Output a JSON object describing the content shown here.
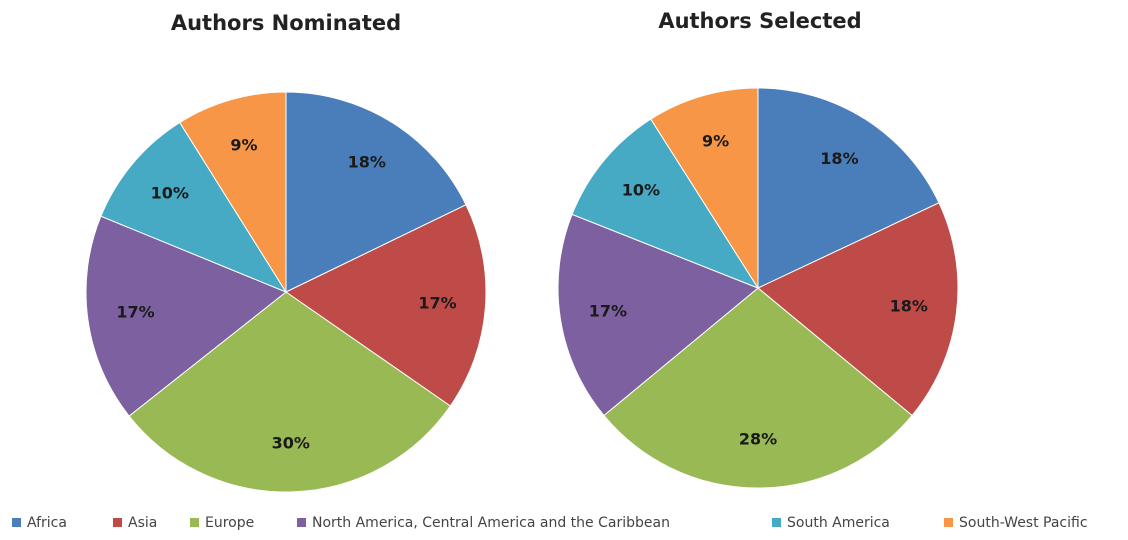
{
  "chart_data": [
    {
      "type": "pie",
      "title": "Authors Nominated",
      "categories": [
        "Africa",
        "Asia",
        "Europe",
        "North America, Central America and the Caribbean",
        "South America",
        "South-West Pacific"
      ],
      "values": [
        18,
        17,
        30,
        17,
        10,
        9
      ],
      "value_labels": [
        "18%",
        "17%",
        "30%",
        "17%",
        "10%",
        "9%"
      ],
      "colors": [
        "#4a7ebb",
        "#be4b48",
        "#98b954",
        "#7d60a0",
        "#46aac5",
        "#f79646"
      ],
      "legend": "bottom"
    },
    {
      "type": "pie",
      "title": "Authors Selected",
      "categories": [
        "Africa",
        "Asia",
        "Europe",
        "North America, Central America and the Caribbean",
        "South America",
        "South-West Pacific"
      ],
      "values": [
        18,
        18,
        28,
        17,
        10,
        9
      ],
      "value_labels": [
        "18%",
        "18%",
        "28%",
        "17%",
        "10%",
        "9%"
      ],
      "colors": [
        "#4a7ebb",
        "#be4b48",
        "#98b954",
        "#7d60a0",
        "#46aac5",
        "#f79646"
      ],
      "legend": "bottom"
    }
  ]
}
